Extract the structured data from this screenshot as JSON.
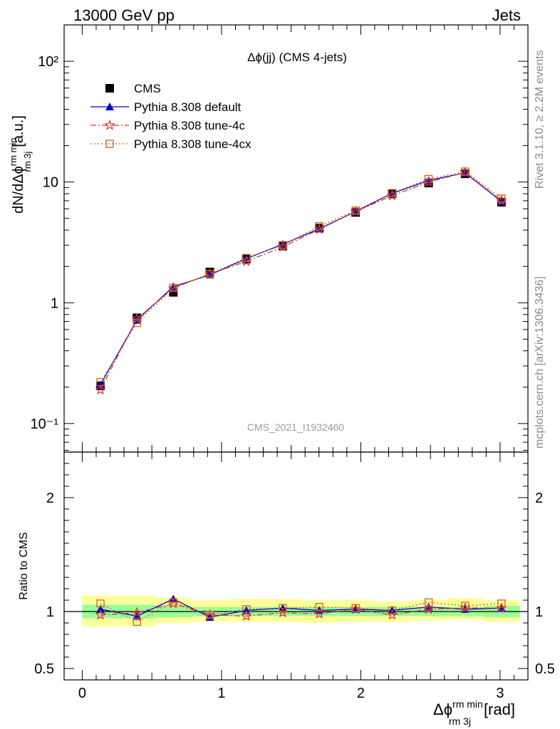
{
  "header": {
    "left": "13000 GeV pp",
    "right": "Jets"
  },
  "side_text": {
    "upper": "Rivet 3.1.10, ≥ 2.2M events",
    "lower": "mcplots.cern.ch [arXiv:1306.3436]"
  },
  "watermark": "CMS_2021_I1932460",
  "chart_data": [
    {
      "type": "scatter",
      "panel": "main",
      "title": "Δϕ(jj) (CMS 4-jets)",
      "ylabel_main": "dN/dΔϕ",
      "ylabel_sup": "rm min",
      "ylabel_sub": "rm 3j",
      "ylabel_unit": "[a.u.]",
      "yscale": "log",
      "xlim": [
        -0.13,
        3.2
      ],
      "ylim": [
        0.058,
        200
      ],
      "y_ticks": [
        "10⁻¹",
        "1",
        "10",
        "10²"
      ],
      "y_tick_values": [
        0.1,
        1,
        10,
        100
      ],
      "legend_position": "top-left",
      "x": [
        0.131,
        0.393,
        0.654,
        0.916,
        1.178,
        1.44,
        1.702,
        1.963,
        2.225,
        2.487,
        2.749,
        3.01
      ],
      "series": [
        {
          "name": "CMS",
          "color": "#000000",
          "marker": "square",
          "values": [
            0.205,
            0.75,
            1.22,
            1.8,
            2.3,
            2.95,
            4.15,
            5.6,
            8.0,
            9.8,
            11.7,
            6.8
          ]
        },
        {
          "name": "Pythia 8.308 default",
          "color": "#0000cc",
          "marker": "triangle",
          "line": "solid",
          "values": [
            0.21,
            0.72,
            1.36,
            1.7,
            2.32,
            3.05,
            4.1,
            5.7,
            8.05,
            10.3,
            11.9,
            6.9
          ]
        },
        {
          "name": "Pythia 8.308 tune-4c",
          "color": "#dd3333",
          "marker": "star",
          "line": "dashdot",
          "values": [
            0.19,
            0.74,
            1.32,
            1.74,
            2.2,
            2.9,
            4.05,
            5.7,
            7.7,
            10.0,
            12.0,
            7.0
          ]
        },
        {
          "name": "Pythia 8.308 tune-4cx",
          "color": "#c8641e",
          "marker": "open-square",
          "line": "dotted",
          "values": [
            0.22,
            0.68,
            1.33,
            1.73,
            2.35,
            3.0,
            4.3,
            5.8,
            8.1,
            10.6,
            12.2,
            7.3
          ]
        }
      ]
    },
    {
      "type": "scatter",
      "panel": "ratio",
      "ylabel": "Ratio to CMS",
      "xlabel_main": "Δϕ",
      "xlabel_sup": "rm min",
      "xlabel_sub": "rm 3j",
      "xlabel_unit": "[rad]",
      "xlim": [
        -0.13,
        3.2
      ],
      "ylim": [
        0.4,
        2.4
      ],
      "x_ticks": [
        "0",
        "1",
        "2",
        "3"
      ],
      "x_tick_values": [
        0,
        1,
        2,
        3
      ],
      "y_ticks": [
        "0.5",
        "1",
        "2"
      ],
      "y_tick_values": [
        0.5,
        1,
        2
      ],
      "bands": {
        "edges": [
          0.0,
          0.262,
          0.524,
          0.785,
          1.047,
          1.309,
          1.571,
          1.833,
          2.094,
          2.356,
          2.618,
          2.88,
          3.142
        ],
        "stat_lo": [
          0.94,
          0.94,
          0.95,
          0.96,
          0.96,
          0.96,
          0.96,
          0.96,
          0.96,
          0.96,
          0.96,
          0.95
        ],
        "stat_hi": [
          1.06,
          1.06,
          1.05,
          1.04,
          1.04,
          1.04,
          1.04,
          1.04,
          1.04,
          1.04,
          1.04,
          1.05
        ],
        "syst_lo": [
          0.87,
          0.87,
          0.9,
          0.91,
          0.91,
          0.91,
          0.9,
          0.91,
          0.91,
          0.92,
          0.93,
          0.91
        ],
        "syst_hi": [
          1.14,
          1.14,
          1.12,
          1.1,
          1.11,
          1.11,
          1.1,
          1.1,
          1.09,
          1.1,
          1.12,
          1.1
        ]
      },
      "x": [
        0.131,
        0.393,
        0.654,
        0.916,
        1.178,
        1.44,
        1.702,
        1.963,
        2.225,
        2.487,
        2.749,
        3.01
      ],
      "series": [
        {
          "name": "Pythia 8.308 default",
          "color": "#0000cc",
          "marker": "triangle",
          "line": "solid",
          "values": [
            1.02,
            0.96,
            1.11,
            0.95,
            1.01,
            1.03,
            1.01,
            1.02,
            1.01,
            1.04,
            1.02,
            1.03
          ]
        },
        {
          "name": "Pythia 8.308 tune-4c",
          "color": "#dd3333",
          "marker": "star",
          "line": "dashdot",
          "values": [
            0.97,
            0.99,
            1.07,
            0.97,
            0.96,
            0.99,
            0.98,
            1.02,
            0.97,
            1.02,
            1.03,
            1.03
          ]
        },
        {
          "name": "Pythia 8.308 tune-4cx",
          "color": "#c8641e",
          "marker": "open-square",
          "line": "dotted",
          "values": [
            1.07,
            0.91,
            1.08,
            0.97,
            1.02,
            1.03,
            1.04,
            1.03,
            1.01,
            1.08,
            1.05,
            1.07
          ]
        }
      ]
    }
  ]
}
